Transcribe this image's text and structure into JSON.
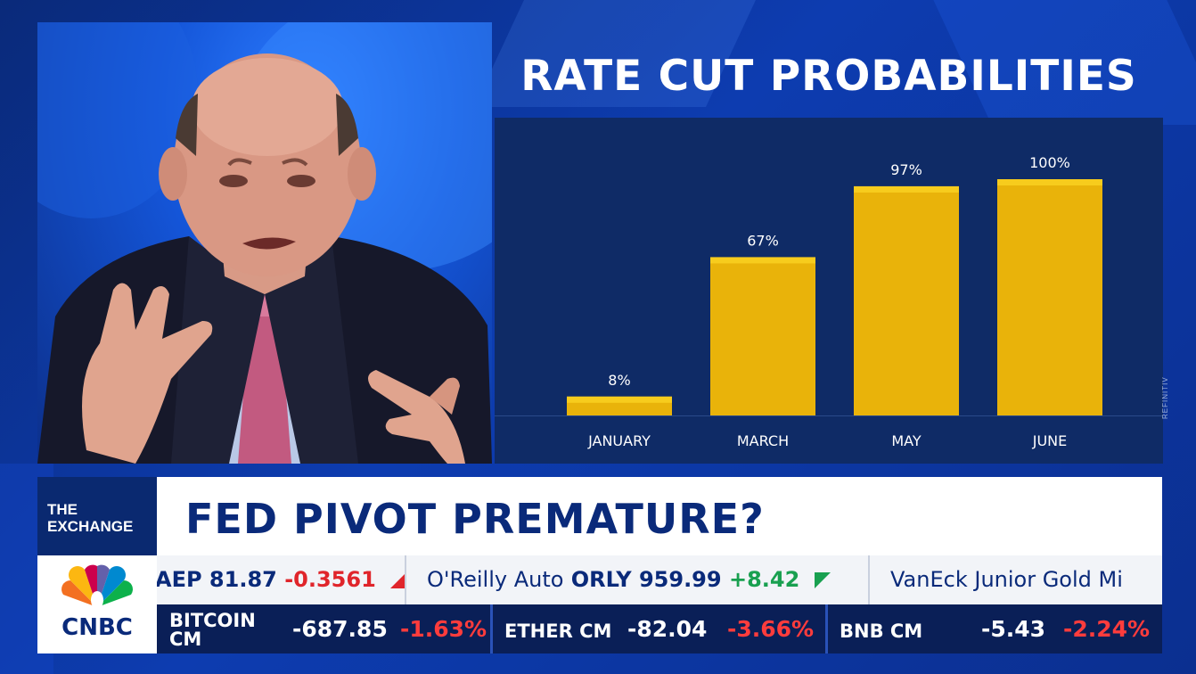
{
  "chart_data": {
    "type": "bar",
    "title": "RATE CUT PROBABILITIES",
    "categories": [
      "JANUARY",
      "MARCH",
      "MAY",
      "JUNE"
    ],
    "values": [
      8,
      67,
      97,
      100
    ],
    "data_labels": [
      "8%",
      "67%",
      "97%",
      "100%"
    ],
    "unit": "%",
    "ylim": [
      0,
      100
    ],
    "grid": false,
    "bar_color": "#e9b30a",
    "source": "REFINITIV"
  },
  "show": {
    "line1": "THE",
    "line2": "EXCHANGE"
  },
  "headline": "FED PIVOT PREMATURE?",
  "logo": {
    "word": "CNBC"
  },
  "ticker_top": [
    {
      "name": "AEP",
      "price": "81.87",
      "change": "-0.3561",
      "direction": "down"
    },
    {
      "name": "O'Reilly Auto",
      "symbol": "ORLY",
      "price": "959.99",
      "change": "+8.42",
      "direction": "up"
    },
    {
      "name": "VanEck Junior Gold Mi"
    }
  ],
  "ticker_bottom": [
    {
      "name_line1": "BITCOIN",
      "name_line2": "CM",
      "change": "-687.85",
      "pct": "-1.63%"
    },
    {
      "name": "ETHER CM",
      "change": "-82.04",
      "pct": "-3.66%"
    },
    {
      "name": "BNB CM",
      "change": "-5.43",
      "pct": "-2.24%"
    }
  ],
  "colors": {
    "accent": "#0a2a7a",
    "negative": "#e0252b",
    "positive": "#19a050"
  }
}
